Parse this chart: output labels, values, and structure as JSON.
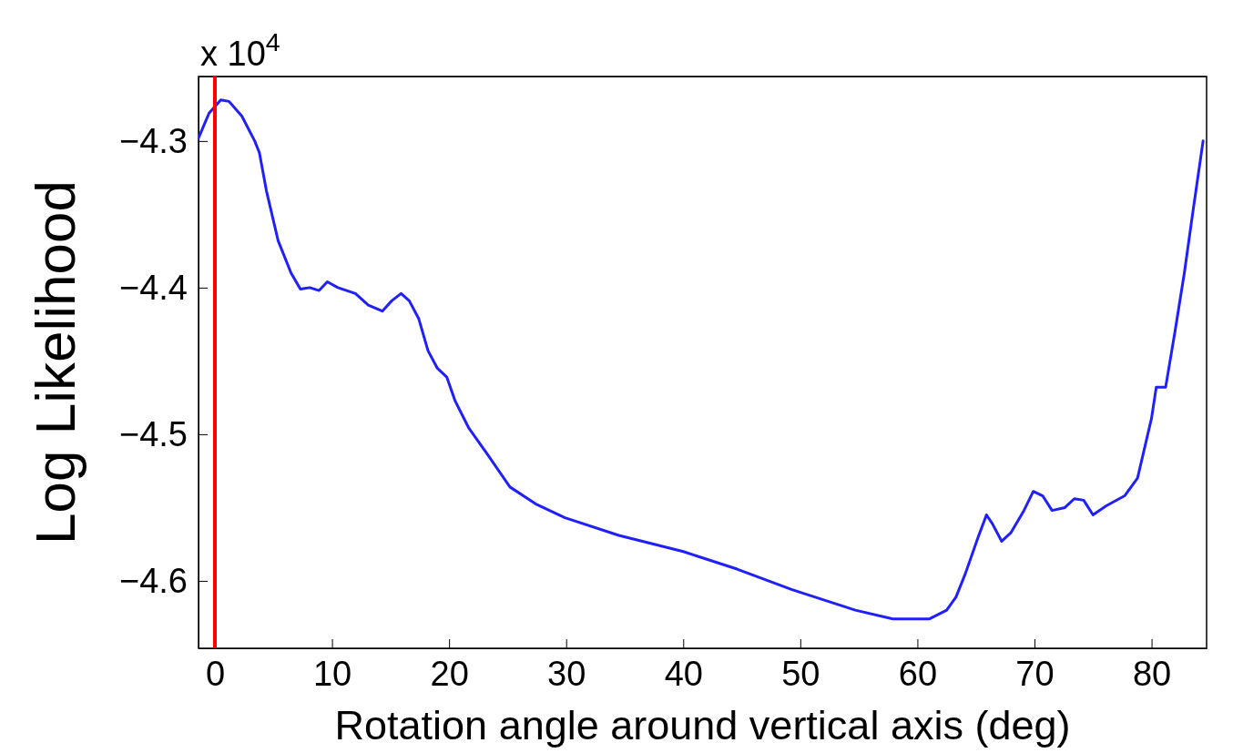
{
  "chart_data": {
    "type": "line",
    "xlabel": "Rotation angle around vertical axis (deg)",
    "ylabel": "Log Likelihood",
    "annotations": [
      "x 10$^{4}$"
    ],
    "xlim": [
      -1.4,
      84.7
    ],
    "xticks": [
      0,
      10,
      20,
      30,
      40,
      50,
      60,
      70,
      80
    ],
    "ylim": [
      -4.646,
      -4.256
    ],
    "yticks": [
      -4.6,
      -4.5,
      -4.4,
      -4.3
    ],
    "grid": false,
    "marker": "none",
    "line_style": "solid",
    "ref_lines": [
      {
        "axis": "x",
        "value": 0,
        "color": "#ff0000"
      }
    ],
    "series": [
      {
        "color": "#1f1fff",
        "x": [
          -1.4,
          -0.5,
          0.5,
          1.2,
          2.3,
          3.4,
          3.8,
          4.4,
          5.4,
          6.5,
          7.3,
          8.1,
          8.9,
          9.6,
          10.5,
          12,
          13.1,
          14.3,
          15.1,
          15.9,
          16.6,
          17.4,
          18.2,
          19,
          19.8,
          20.5,
          21.7,
          23.3,
          25.2,
          27.5,
          29.9,
          34.5,
          40,
          44.6,
          49.3,
          54.7,
          57.9,
          61,
          62.5,
          63.3,
          64.1,
          65.2,
          65.9,
          66.4,
          67.2,
          68,
          69.1,
          69.9,
          70.7,
          71.5,
          72.6,
          73.4,
          74.2,
          75,
          76.1,
          77.7,
          78.8,
          80,
          80.4,
          81.2,
          82,
          82.8,
          83.5,
          84.4
        ],
        "values": [
          -4.298,
          -4.281,
          -4.272,
          -4.273,
          -4.283,
          -4.3,
          -4.308,
          -4.334,
          -4.368,
          -4.39,
          -4.401,
          -4.4,
          -4.402,
          -4.396,
          -4.4,
          -4.404,
          -4.412,
          -4.416,
          -4.409,
          -4.404,
          -4.409,
          -4.421,
          -4.443,
          -4.455,
          -4.461,
          -4.477,
          -4.496,
          -4.514,
          -4.536,
          -4.548,
          -4.557,
          -4.569,
          -4.58,
          -4.592,
          -4.606,
          -4.62,
          -4.626,
          -4.626,
          -4.62,
          -4.611,
          -4.595,
          -4.57,
          -4.555,
          -4.561,
          -4.573,
          -4.567,
          -4.552,
          -4.539,
          -4.542,
          -4.552,
          -4.55,
          -4.544,
          -4.545,
          -4.555,
          -4.549,
          -4.542,
          -4.53,
          -4.489,
          -4.468,
          -4.468,
          -4.43,
          -4.39,
          -4.35,
          -4.3
        ]
      }
    ]
  }
}
